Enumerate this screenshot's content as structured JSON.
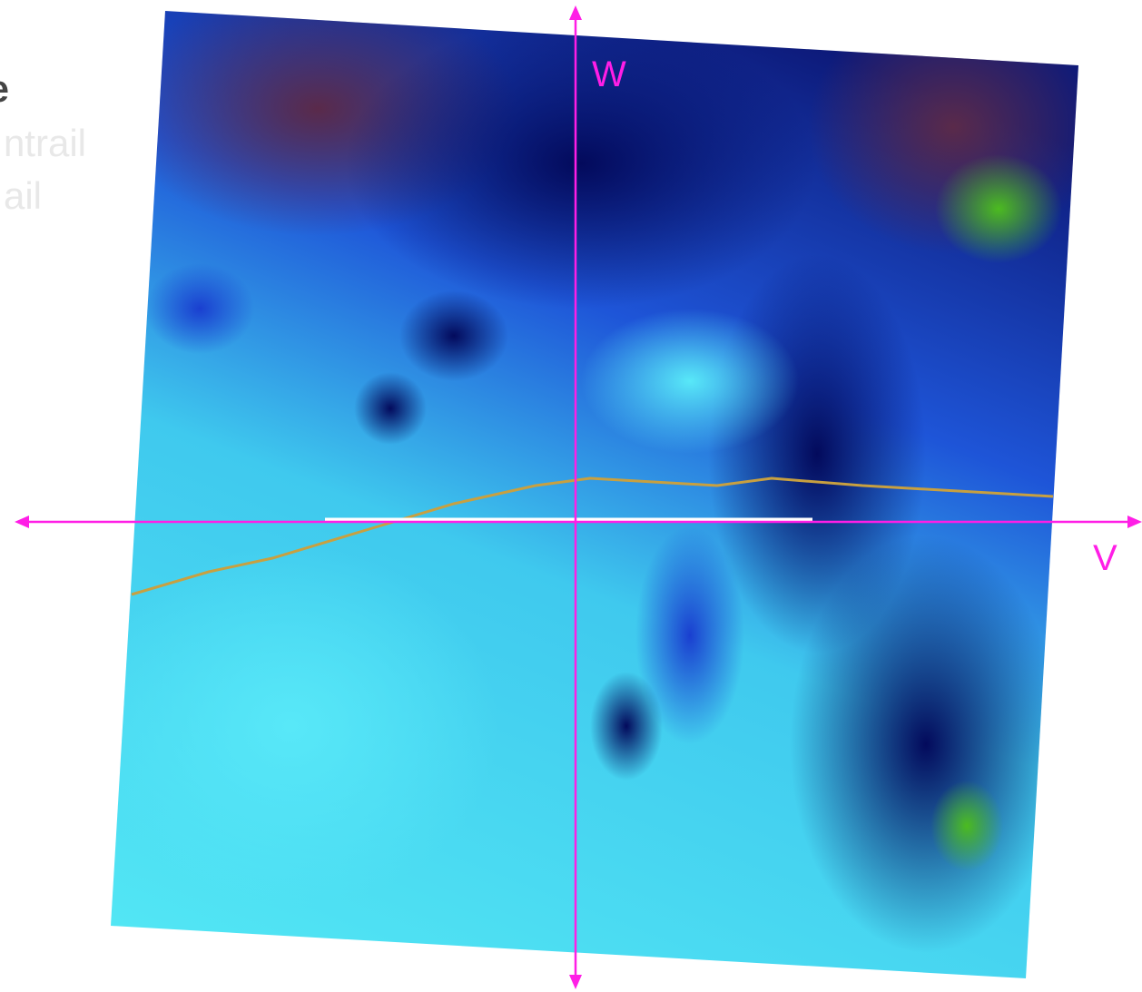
{
  "side_text": [
    "e",
    "ntrail",
    "ail"
  ],
  "axes": {
    "vertical": "W",
    "horizontal": "V"
  }
}
